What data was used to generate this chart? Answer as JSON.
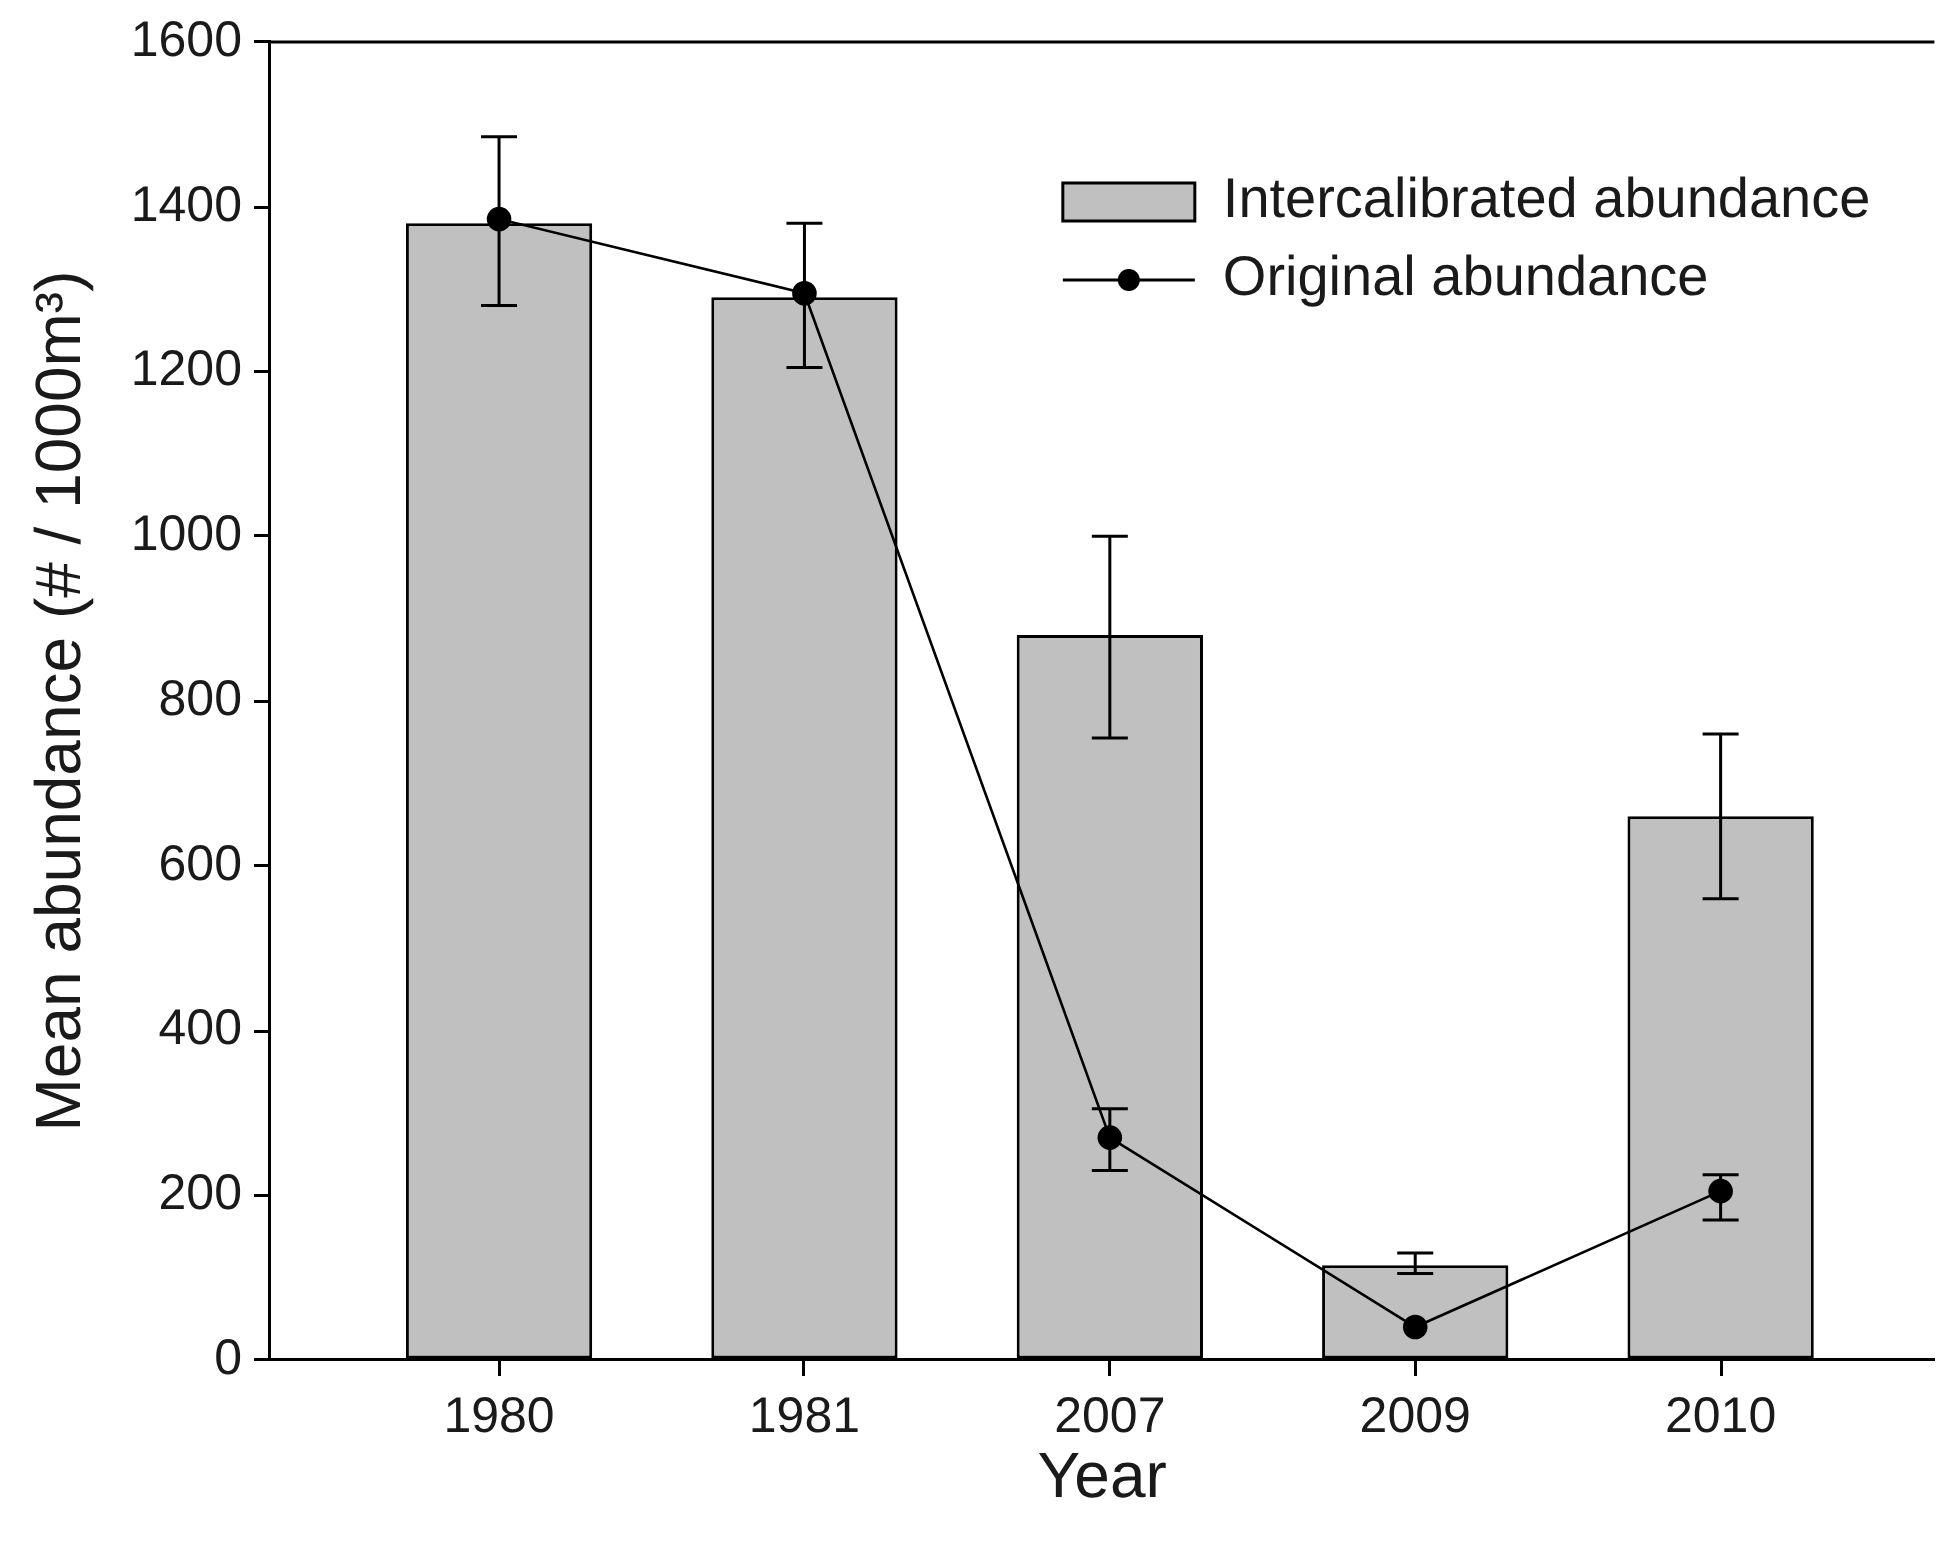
{
  "chart_data": {
    "type": "bar",
    "xlabel": "Year",
    "ylabel": "Mean abundance (# / 1000m³)",
    "categories": [
      "1980",
      "1981",
      "2007",
      "2009",
      "2010"
    ],
    "series": [
      {
        "name": "Intercalibrated abundance",
        "color": "#c0c0c0",
        "values": [
          1380,
          1290,
          880,
          115,
          660
        ],
        "errors": [
          [
            1280,
            1485
          ],
          [
            1205,
            1380
          ],
          [
            755,
            1000
          ],
          [
            105,
            130
          ],
          [
            560,
            760
          ]
        ]
      },
      {
        "name": "Original abundance",
        "type": "line",
        "color": "#000000",
        "marker": "circle",
        "values": [
          1385,
          1295,
          270,
          40,
          205
        ],
        "errors": [
          null,
          null,
          [
            230,
            305
          ],
          null,
          [
            170,
            225
          ]
        ]
      }
    ],
    "ylim": [
      0,
      1600
    ],
    "yticks": [
      0,
      200,
      400,
      600,
      800,
      1000,
      1200,
      1400,
      1600
    ],
    "grid": false,
    "legend": "top right"
  }
}
